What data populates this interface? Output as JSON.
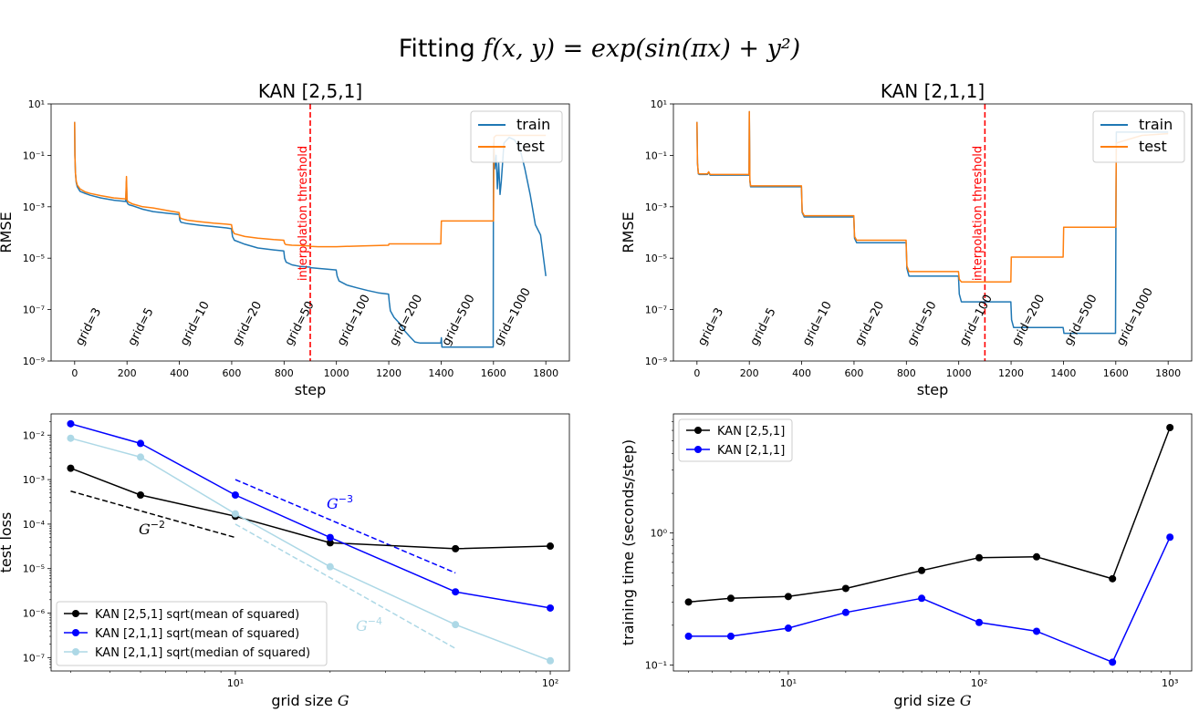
{
  "figure": {
    "title_prefix": "Fitting ",
    "title_formula": "f(x, y) = exp(sin(πx) + y²)"
  },
  "chart_data": [
    {
      "id": "top-left",
      "type": "line",
      "title": "KAN [2,5,1]",
      "xlabel": "step",
      "ylabel": "RMSE",
      "x_scale": "linear",
      "y_scale": "log",
      "xlim": [
        -90,
        1890
      ],
      "ylim": [
        1e-09,
        10
      ],
      "xticks": [
        0,
        200,
        400,
        600,
        800,
        1000,
        1200,
        1400,
        1600,
        1800
      ],
      "yticks": [
        1e-09,
        1e-07,
        1e-05,
        0.001,
        0.1,
        10
      ],
      "ytick_labels": [
        "10⁻⁹",
        "10⁻⁷",
        "10⁻⁵",
        "10⁻³",
        "10⁻¹",
        "10¹"
      ],
      "threshold": {
        "x": 900,
        "label": "interpolation threshold",
        "color": "#ff0000"
      },
      "grid_labels": [
        {
          "x": 0,
          "text": "grid=3"
        },
        {
          "x": 200,
          "text": "grid=5"
        },
        {
          "x": 400,
          "text": "grid=10"
        },
        {
          "x": 600,
          "text": "grid=20"
        },
        {
          "x": 800,
          "text": "grid=50"
        },
        {
          "x": 1000,
          "text": "grid=100"
        },
        {
          "x": 1200,
          "text": "grid=200"
        },
        {
          "x": 1400,
          "text": "grid=500"
        },
        {
          "x": 1600,
          "text": "grid=1000"
        }
      ],
      "legend": {
        "position": "upper right",
        "entries": [
          {
            "text": "train",
            "color": "#1f77b4"
          },
          {
            "text": "test",
            "color": "#ff7f0e"
          }
        ]
      },
      "series": [
        {
          "name": "train",
          "color": "#1f77b4",
          "x": [
            0,
            1,
            3,
            6,
            10,
            20,
            40,
            60,
            100,
            150,
            195,
            198,
            200,
            203,
            208,
            220,
            260,
            300,
            360,
            399,
            402,
            406,
            430,
            480,
            530,
            580,
            599,
            603,
            610,
            650,
            700,
            760,
            799,
            802,
            808,
            830,
            860,
            899,
            902,
            906,
            930,
            960,
            999,
            1003,
            1010,
            1040,
            1080,
            1120,
            1160,
            1199,
            1202,
            1206,
            1220,
            1240,
            1260,
            1280,
            1300,
            1320,
            1340,
            1360,
            1380,
            1399,
            1401,
            1403,
            1406,
            1410,
            1450,
            1500,
            1550,
            1599,
            1600,
            1601,
            1605,
            1610,
            1615,
            1620,
            1625,
            1630,
            1640,
            1660,
            1680,
            1700,
            1720,
            1740,
            1760,
            1780,
            1800
          ],
          "y": [
            2.0,
            0.1,
            0.02,
            0.009,
            0.006,
            0.004,
            0.0033,
            0.0028,
            0.0022,
            0.0018,
            0.0016,
            0.01,
            0.0015,
            0.0013,
            0.0012,
            0.0011,
            0.0008,
            0.00065,
            0.00055,
            0.0005,
            0.0003,
            0.00025,
            0.00022,
            0.00019,
            0.00017,
            0.00015,
            0.00014,
            7e-05,
            5e-05,
            3.5e-05,
            2.5e-05,
            2.1e-05,
            1.9e-05,
            1e-05,
            7e-06,
            5.5e-06,
            4.8e-06,
            4.5e-06,
            4.2e-06,
            4.2e-06,
            4e-06,
            3.8e-06,
            3.5e-06,
            2e-06,
            1.3e-06,
            9e-07,
            7e-07,
            5.5e-07,
            4.5e-07,
            4e-07,
            2e-07,
            9e-08,
            5e-08,
            3e-08,
            1.5e-08,
            9e-09,
            5.5e-09,
            5e-09,
            5e-09,
            5e-09,
            5e-09,
            5e-09,
            8e-09,
            3.5e-09,
            3.5e-09,
            3.5e-09,
            3.5e-09,
            3.5e-09,
            3.5e-09,
            3.5e-09,
            0.1,
            0.3,
            0.03,
            0.1,
            0.005,
            0.05,
            0.003,
            0.01,
            0.3,
            0.5,
            0.4,
            0.2,
            0.03,
            0.003,
            0.0002,
            8e-05,
            2e-06
          ]
        },
        {
          "name": "test",
          "color": "#ff7f0e",
          "x": [
            0,
            1,
            3,
            6,
            10,
            20,
            40,
            60,
            100,
            150,
            195,
            198,
            200,
            203,
            208,
            220,
            260,
            300,
            360,
            399,
            402,
            406,
            430,
            480,
            530,
            580,
            599,
            603,
            610,
            650,
            700,
            760,
            799,
            802,
            806,
            830,
            860,
            899,
            902,
            930,
            1000,
            1100,
            1199,
            1201,
            1300,
            1399,
            1401,
            1450,
            1500,
            1599,
            1600,
            1602,
            1610,
            1700,
            1800
          ],
          "y": [
            2.0,
            0.1,
            0.02,
            0.01,
            0.007,
            0.005,
            0.0038,
            0.0033,
            0.0027,
            0.0022,
            0.002,
            0.015,
            0.0019,
            0.0016,
            0.0015,
            0.0013,
            0.001,
            0.0009,
            0.0007,
            0.0006,
            0.0004,
            0.00035,
            0.0003,
            0.00026,
            0.00023,
            0.00021,
            0.0002,
            0.00012,
            9e-05,
            7e-05,
            6e-05,
            5.3e-05,
            5e-05,
            3.8e-05,
            3.4e-05,
            3.2e-05,
            3.1e-05,
            3e-05,
            2.9e-05,
            2.8e-05,
            2.8e-05,
            3e-05,
            3.2e-05,
            3.6e-05,
            3.6e-05,
            3.6e-05,
            0.00028,
            0.00028,
            0.00028,
            0.00028,
            0.00028,
            0.5,
            0.6,
            0.6,
            0.6
          ]
        }
      ]
    },
    {
      "id": "top-right",
      "type": "line",
      "title": "KAN [2,1,1]",
      "xlabel": "step",
      "ylabel": "RMSE",
      "x_scale": "linear",
      "y_scale": "log",
      "xlim": [
        -90,
        1890
      ],
      "ylim": [
        1e-09,
        10
      ],
      "xticks": [
        0,
        200,
        400,
        600,
        800,
        1000,
        1200,
        1400,
        1600,
        1800
      ],
      "yticks": [
        1e-09,
        1e-07,
        1e-05,
        0.001,
        0.1,
        10
      ],
      "ytick_labels": [
        "10⁻⁹",
        "10⁻⁷",
        "10⁻⁵",
        "10⁻³",
        "10⁻¹",
        "10¹"
      ],
      "threshold": {
        "x": 1100,
        "label": "interpolation threshold",
        "color": "#ff0000"
      },
      "grid_labels": [
        {
          "x": 0,
          "text": "grid=3"
        },
        {
          "x": 200,
          "text": "grid=5"
        },
        {
          "x": 400,
          "text": "grid=10"
        },
        {
          "x": 600,
          "text": "grid=20"
        },
        {
          "x": 800,
          "text": "grid=50"
        },
        {
          "x": 1000,
          "text": "grid=100"
        },
        {
          "x": 1200,
          "text": "grid=200"
        },
        {
          "x": 1400,
          "text": "grid=500"
        },
        {
          "x": 1600,
          "text": "grid=1000"
        }
      ],
      "legend": {
        "position": "upper right",
        "entries": [
          {
            "text": "train",
            "color": "#1f77b4"
          },
          {
            "text": "test",
            "color": "#ff7f0e"
          }
        ]
      },
      "series": [
        {
          "name": "train",
          "color": "#1f77b4",
          "x": [
            0,
            2,
            5,
            10,
            20,
            40,
            45,
            50,
            100,
            150,
            199,
            200,
            202,
            205,
            210,
            250,
            300,
            399,
            402,
            410,
            450,
            500,
            599,
            602,
            610,
            650,
            700,
            799,
            802,
            810,
            850,
            900,
            999,
            1002,
            1010,
            1050,
            1100,
            1199,
            1202,
            1210,
            1250,
            1300,
            1399,
            1402,
            1410,
            1450,
            1500,
            1599,
            1600,
            1602,
            1700,
            1800
          ],
          "y": [
            2.0,
            0.05,
            0.019,
            0.018,
            0.018,
            0.018,
            0.022,
            0.017,
            0.017,
            0.017,
            0.017,
            5.0,
            0.01,
            0.006,
            0.006,
            0.006,
            0.006,
            0.006,
            0.0006,
            0.0004,
            0.0004,
            0.0004,
            0.0004,
            6e-05,
            4e-05,
            4e-05,
            4e-05,
            4e-05,
            4e-06,
            2e-06,
            2e-06,
            2e-06,
            2e-06,
            4e-07,
            2e-07,
            2e-07,
            2e-07,
            2e-07,
            4e-08,
            2e-08,
            2e-08,
            2e-08,
            2e-08,
            1.2e-08,
            1.2e-08,
            1.2e-08,
            1.2e-08,
            1.2e-08,
            1.5e-05,
            0.8,
            0.8,
            0.8
          ]
        },
        {
          "name": "test",
          "color": "#ff7f0e",
          "x": [
            0,
            2,
            5,
            10,
            20,
            40,
            45,
            50,
            100,
            150,
            199,
            200,
            202,
            205,
            210,
            250,
            300,
            399,
            402,
            410,
            450,
            500,
            599,
            602,
            610,
            650,
            700,
            799,
            802,
            810,
            850,
            900,
            999,
            1002,
            1010,
            1050,
            1100,
            1199,
            1201,
            1300,
            1399,
            1401,
            1500,
            1599,
            1600,
            1602,
            1700,
            1800
          ],
          "y": [
            2.0,
            0.05,
            0.02,
            0.019,
            0.019,
            0.019,
            0.023,
            0.018,
            0.018,
            0.018,
            0.018,
            5.0,
            0.011,
            0.0065,
            0.0065,
            0.0065,
            0.0065,
            0.0065,
            0.00065,
            0.00045,
            0.00045,
            0.00045,
            0.00045,
            7e-05,
            5e-05,
            5e-05,
            5e-05,
            5e-05,
            5e-06,
            3e-06,
            3e-06,
            3e-06,
            3e-06,
            1.5e-06,
            1.2e-06,
            1.2e-06,
            1.2e-06,
            1.2e-06,
            1.1e-05,
            1.1e-05,
            1.1e-05,
            0.00016,
            0.00016,
            0.00016,
            0.00016,
            0.3,
            0.6,
            0.7
          ]
        }
      ]
    },
    {
      "id": "bottom-left",
      "type": "line",
      "xlabel_text": "grid size ",
      "xlabel_var": "G",
      "ylabel": "test loss",
      "x_scale": "log",
      "y_scale": "log",
      "xlim": [
        2.6,
        115
      ],
      "ylim": [
        5e-08,
        0.03
      ],
      "xticks": [
        10,
        100
      ],
      "xtick_labels": [
        "10¹",
        "10²"
      ],
      "yticks": [
        1e-07,
        1e-06,
        1e-05,
        0.0001,
        0.001,
        0.01
      ],
      "ytick_labels": [
        "10⁻⁷",
        "10⁻⁶",
        "10⁻⁵",
        "10⁻⁴",
        "10⁻³",
        "10⁻²"
      ],
      "legend": {
        "position": "lower left"
      },
      "series": [
        {
          "name": "KAN [2,5,1] sqrt(mean of squared)",
          "color": "#000000",
          "marker": "circle",
          "x": [
            3,
            5,
            10,
            20,
            50,
            100
          ],
          "y": [
            0.0018,
            0.00045,
            0.00015,
            3.8e-05,
            2.8e-05,
            3.2e-05
          ]
        },
        {
          "name": "KAN [2,1,1] sqrt(mean of squared)",
          "color": "#0000ff",
          "marker": "circle",
          "x": [
            3,
            5,
            10,
            20,
            50,
            100
          ],
          "y": [
            0.018,
            0.0065,
            0.00045,
            5e-05,
            3e-06,
            1.3e-06
          ]
        },
        {
          "name": "KAN [2,1,1] sqrt(median of squared)",
          "color": "#add8e6",
          "marker": "circle",
          "x": [
            3,
            5,
            10,
            20,
            50,
            100
          ],
          "y": [
            0.0085,
            0.0032,
            0.00017,
            1.1e-05,
            5.5e-07,
            8.5e-08
          ]
        }
      ],
      "reference_lines": [
        {
          "label_base": "G",
          "label_exp": "−2",
          "color": "#000000",
          "x": [
            3,
            10
          ],
          "y": [
            0.00055,
            5e-05
          ]
        },
        {
          "label_base": "G",
          "label_exp": "−3",
          "color": "#0000ff",
          "x": [
            10,
            50
          ],
          "y": [
            0.001,
            8e-06
          ]
        },
        {
          "label_base": "G",
          "label_exp": "−4",
          "color": "#add8e6",
          "x": [
            10,
            50
          ],
          "y": [
            0.0001,
            1.6e-07
          ]
        }
      ]
    },
    {
      "id": "bottom-right",
      "type": "line",
      "xlabel_text": "grid size ",
      "xlabel_var": "G",
      "ylabel": "training time (seconds/step)",
      "x_scale": "log",
      "y_scale": "log",
      "xlim": [
        2.5,
        1300
      ],
      "ylim": [
        0.09,
        8
      ],
      "xticks": [
        10,
        100,
        1000
      ],
      "xtick_labels": [
        "10¹",
        "10²",
        "10³"
      ],
      "yticks": [
        0.1,
        1
      ],
      "ytick_labels": [
        "10⁻¹",
        "10⁰"
      ],
      "legend": {
        "position": "upper left"
      },
      "series": [
        {
          "name": "KAN [2,5,1]",
          "color": "#000000",
          "marker": "circle",
          "x": [
            3,
            5,
            10,
            20,
            50,
            100,
            200,
            500,
            1000
          ],
          "y": [
            0.3,
            0.32,
            0.33,
            0.38,
            0.52,
            0.65,
            0.66,
            0.45,
            6.3
          ]
        },
        {
          "name": "KAN [2,1,1]",
          "color": "#0000ff",
          "marker": "circle",
          "x": [
            3,
            5,
            10,
            20,
            50,
            100,
            200,
            500,
            1000
          ],
          "y": [
            0.165,
            0.165,
            0.19,
            0.25,
            0.32,
            0.21,
            0.18,
            0.105,
            0.93
          ]
        }
      ]
    }
  ]
}
